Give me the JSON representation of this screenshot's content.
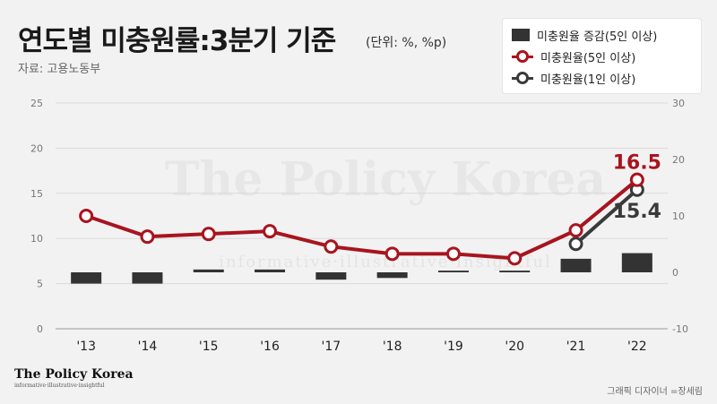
{
  "header": {
    "title": "연도별 미충원률:3분기 기준",
    "unit": "(단위: %, %p)",
    "source": "자료: 고용노동부"
  },
  "legend": {
    "bar": "미충원율 증감(5인 이상)",
    "red_line": "미충원율(5인 이상)",
    "gray_line": "미충원율(1인 이상)"
  },
  "watermark": {
    "main": "The Policy Korea",
    "sub": "informative·illustrative·insightful"
  },
  "footer": {
    "logo": "The Policy Korea",
    "logo_tag": "informative·illustrative·insightful",
    "designer": "그래픽 디자이너 =장세림"
  },
  "colors": {
    "red": "#a8141e",
    "gray_line": "#3a3a3a",
    "bar": "#333333",
    "grid": "#d9d9d9"
  },
  "chart_data": {
    "type": "bar+line",
    "categories": [
      "'13",
      "'14",
      "'15",
      "'16",
      "'17",
      "'18",
      "'19",
      "'20",
      "'21",
      "'22"
    ],
    "left_axis": {
      "ticks": [
        0,
        5,
        10,
        15,
        20,
        25
      ],
      "ylim": [
        0,
        25
      ]
    },
    "right_axis": {
      "ticks": [
        -10,
        0,
        10,
        20,
        30
      ],
      "ylim": [
        -10,
        30
      ]
    },
    "series": [
      {
        "name": "미충원율 증감(5인 이상)",
        "type": "bar",
        "axis": "right",
        "values": [
          -2.0,
          -2.0,
          0.5,
          0.5,
          -1.3,
          -1.0,
          0.3,
          0.3,
          2.4,
          3.4
        ]
      },
      {
        "name": "미충원율(5인 이상)",
        "type": "line",
        "axis": "left",
        "values": [
          12.5,
          10.2,
          10.5,
          10.8,
          9.1,
          8.3,
          8.3,
          7.8,
          10.9,
          16.5
        ]
      },
      {
        "name": "미충원율(1인 이상)",
        "type": "line",
        "axis": "left",
        "x": [
          "'21",
          "'22"
        ],
        "values": [
          9.4,
          15.4
        ]
      }
    ],
    "data_labels": [
      {
        "series": "미충원율(5인 이상)",
        "category": "'22",
        "text": "16.5"
      },
      {
        "series": "미충원율(1인 이상)",
        "category": "'22",
        "text": "15.4"
      }
    ]
  }
}
